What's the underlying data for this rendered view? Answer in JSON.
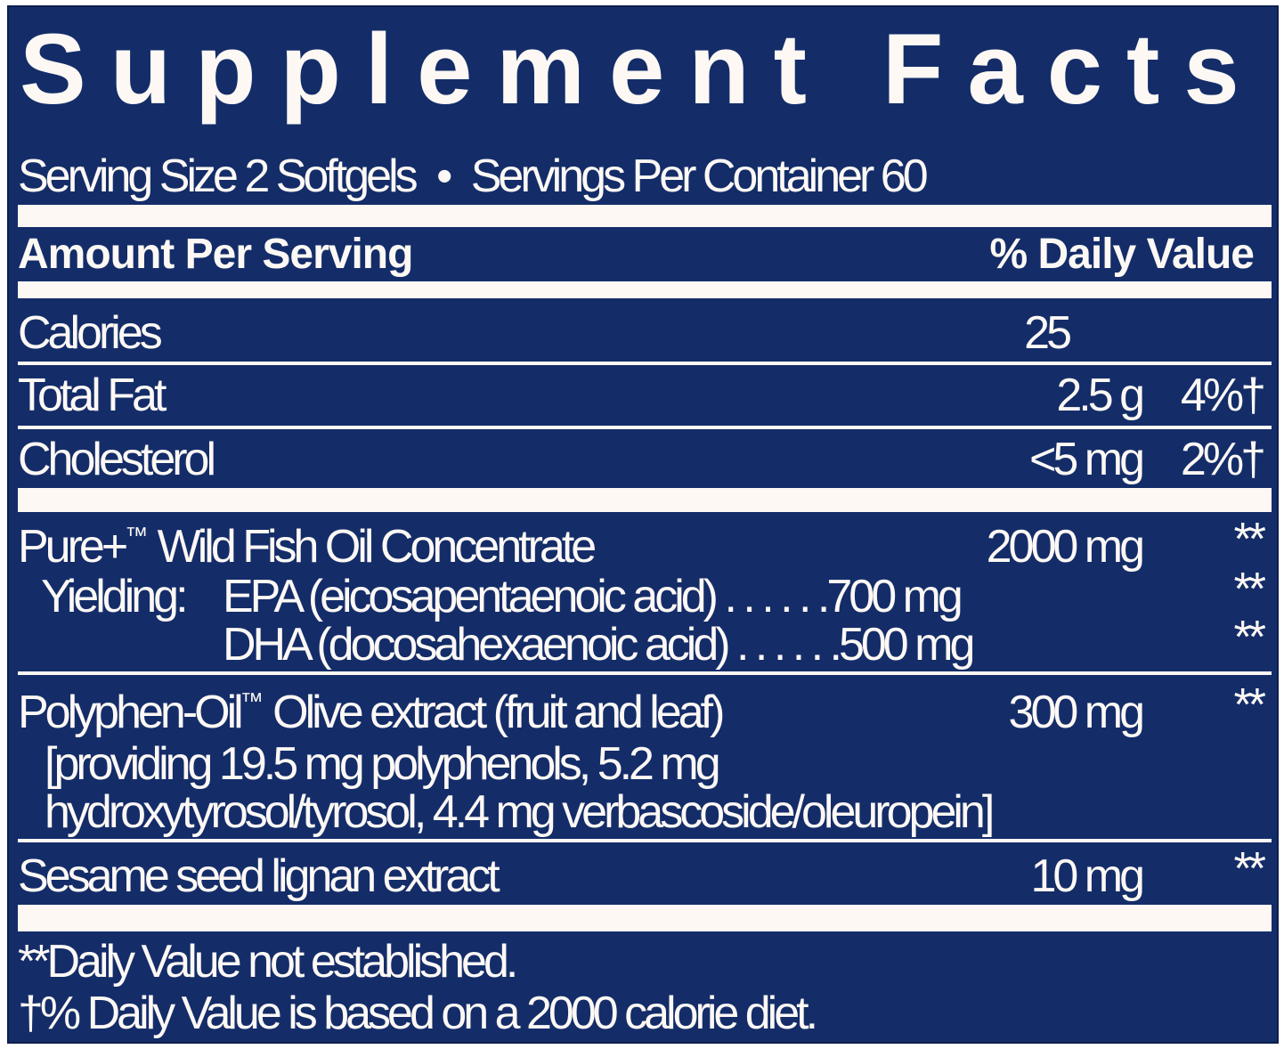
{
  "title": "Supplement Facts",
  "serving": {
    "size": "Serving Size 2 Softgels",
    "bullet": "•",
    "per_container": "Servings Per Container 60"
  },
  "header": {
    "amount": "Amount Per Serving",
    "dv": "% Daily Value"
  },
  "rows": [
    {
      "name": "Calories",
      "amount": "25",
      "dv": ""
    },
    {
      "name": "Total Fat",
      "amount": "2.5 g",
      "dv": "4%†"
    },
    {
      "name": "Cholesterol",
      "amount": "<5 mg",
      "dv": "2%†"
    }
  ],
  "fish_oil": {
    "name": "Pure+",
    "tm": "™",
    "name_rest": " Wild Fish Oil Concentrate",
    "amount": "2000 mg",
    "dv": "**",
    "yielding": "Yielding:",
    "epa": {
      "name": "EPA (eicosapentaenoic acid) . . . . . .700 mg",
      "dv": "**"
    },
    "dha": {
      "name": "DHA (docosahexaenoic acid) . . . . . .500 mg",
      "dv": "**"
    }
  },
  "olive": {
    "name": "Polyphen-Oil",
    "tm": "™",
    "name_rest": " Olive extract (fruit and leaf)",
    "amount": "300 mg",
    "dv": "**",
    "line2": "[providing 19.5 mg polyphenols, 5.2 mg",
    "line3": "hydroxytyrosol/tyrosol, 4.4 mg verbascoside/oleuropein]"
  },
  "sesame": {
    "name": "Sesame seed lignan extract",
    "amount": "10 mg",
    "dv": "**"
  },
  "footnotes": [
    "**Daily Value not established.",
    "†% Daily Value is based on a 2000 calorie diet."
  ],
  "colors": {
    "background": "#142d69",
    "text": "#fdf8f4"
  }
}
